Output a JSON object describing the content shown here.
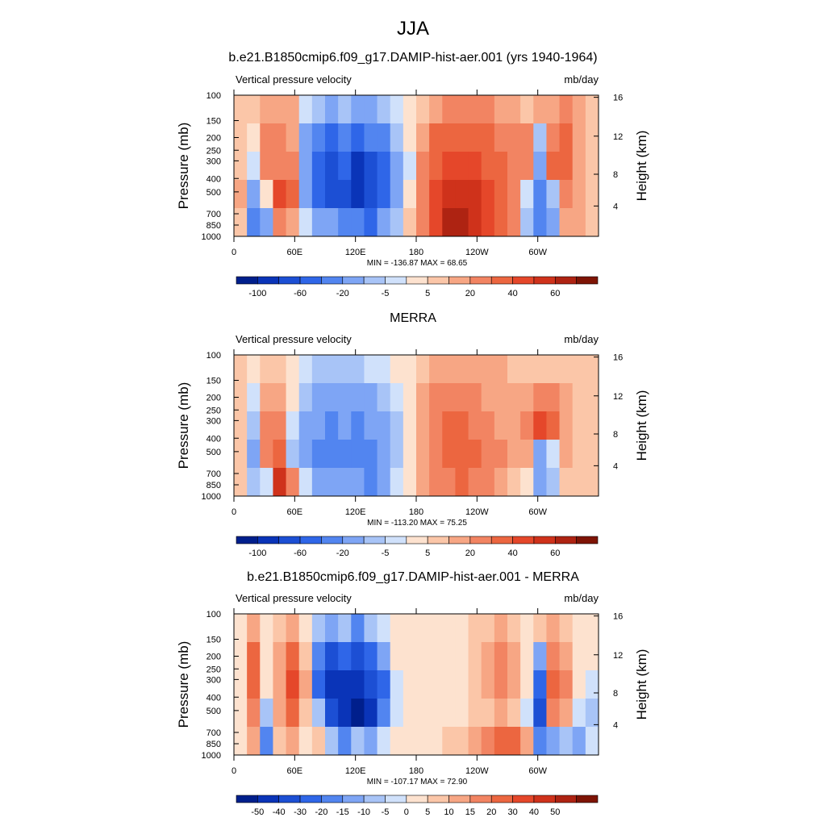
{
  "figure_title": "JJA",
  "chart_data": [
    {
      "type": "heatmap",
      "title": "b.e21.B1850cmip6.f09_g17.DAMIP-hist-aer.001 (yrs 1940-1964)",
      "left_label": "Vertical pressure velocity",
      "right_label": "mb/day",
      "xlabel": "",
      "ylabel": "Pressure (mb)",
      "y2label": "Height (km)",
      "x_ticks": [
        "0",
        "60E",
        "120E",
        "180",
        "120W",
        "60W"
      ],
      "y_ticks": [
        "100",
        "150",
        "200",
        "250",
        "300",
        "400",
        "500",
        "700",
        "850",
        "1000"
      ],
      "y2_ticks": [
        "16",
        "12",
        "8",
        "4"
      ],
      "stats": "MIN = -136.87  MAX =  68.65",
      "colorbar_labels": [
        "-100",
        "-60",
        "-20",
        "-5",
        "5",
        "20",
        "40",
        "60"
      ],
      "colorbar_colors": [
        "#001f8c",
        "#0a34b8",
        "#1c4fd4",
        "#2f66e8",
        "#5285f0",
        "#7ea5f5",
        "#a8c4f7",
        "#d0e1fb",
        "#fde2cf",
        "#fbc6a8",
        "#f7a684",
        "#f28462",
        "#ec6640",
        "#e5472a",
        "#cf321b",
        "#ae2312",
        "#7e1405"
      ],
      "sampled_values": [
        [
          2,
          2,
          5,
          5,
          5,
          -10,
          -20,
          -25,
          -20,
          -30,
          -25,
          -20,
          -10,
          -3,
          2,
          8,
          10,
          12,
          12,
          10,
          8,
          5,
          3,
          5,
          8,
          12,
          8,
          2
        ],
        [
          3,
          -5,
          10,
          12,
          8,
          -30,
          -60,
          -70,
          -55,
          -70,
          -60,
          -50,
          -20,
          -5,
          8,
          20,
          25,
          25,
          25,
          20,
          18,
          10,
          10,
          -20,
          15,
          20,
          5,
          3
        ],
        [
          3,
          -10,
          12,
          15,
          10,
          -40,
          -80,
          -100,
          -80,
          -110,
          -90,
          -70,
          -30,
          -8,
          10,
          25,
          35,
          35,
          30,
          25,
          20,
          12,
          15,
          -40,
          20,
          25,
          8,
          3
        ],
        [
          5,
          -30,
          -5,
          30,
          20,
          -30,
          -70,
          -90,
          -90,
          -120,
          -100,
          -70,
          -30,
          -5,
          15,
          30,
          45,
          45,
          40,
          30,
          20,
          10,
          -10,
          -60,
          -20,
          15,
          8,
          2
        ],
        [
          2,
          -50,
          -40,
          10,
          5,
          -10,
          -30,
          -40,
          -60,
          -60,
          -70,
          -40,
          -15,
          0,
          15,
          30,
          50,
          55,
          45,
          30,
          20,
          10,
          -20,
          -50,
          -30,
          5,
          5,
          2
        ]
      ]
    },
    {
      "type": "heatmap",
      "title": "MERRA",
      "left_label": "Vertical pressure velocity",
      "right_label": "mb/day",
      "xlabel": "",
      "ylabel": "Pressure (mb)",
      "y2label": "Height (km)",
      "x_ticks": [
        "0",
        "60E",
        "120E",
        "180",
        "120W",
        "60W"
      ],
      "y_ticks": [
        "100",
        "150",
        "200",
        "250",
        "300",
        "400",
        "500",
        "700",
        "850",
        "1000"
      ],
      "y2_ticks": [
        "16",
        "12",
        "8",
        "4"
      ],
      "stats": "MIN = -113.20  MAX =  75.25",
      "colorbar_labels": [
        "-100",
        "-60",
        "-20",
        "-5",
        "5",
        "20",
        "40",
        "60"
      ],
      "colorbar_colors": [
        "#001f8c",
        "#0a34b8",
        "#1c4fd4",
        "#2f66e8",
        "#5285f0",
        "#7ea5f5",
        "#a8c4f7",
        "#d0e1fb",
        "#fde2cf",
        "#fbc6a8",
        "#f7a684",
        "#f28462",
        "#ec6640",
        "#e5472a",
        "#cf321b",
        "#ae2312",
        "#7e1405"
      ],
      "sampled_values": [
        [
          2,
          -2,
          2,
          2,
          -3,
          -8,
          -12,
          -15,
          -15,
          -12,
          -10,
          -8,
          -5,
          -2,
          2,
          5,
          5,
          5,
          5,
          5,
          5,
          3,
          2,
          2,
          3,
          3,
          2,
          2
        ],
        [
          2,
          -8,
          5,
          5,
          -5,
          -20,
          -30,
          -35,
          -30,
          -30,
          -25,
          -20,
          -10,
          -3,
          5,
          10,
          12,
          12,
          10,
          8,
          5,
          5,
          5,
          15,
          10,
          5,
          3,
          2
        ],
        [
          3,
          -20,
          10,
          15,
          -10,
          -30,
          -40,
          -45,
          -40,
          -45,
          -40,
          -35,
          -15,
          -5,
          8,
          15,
          20,
          20,
          15,
          12,
          8,
          5,
          10,
          30,
          20,
          8,
          3,
          2
        ],
        [
          3,
          -30,
          15,
          25,
          -15,
          -30,
          -45,
          -50,
          -45,
          -55,
          -50,
          -40,
          -20,
          -5,
          8,
          18,
          22,
          25,
          22,
          15,
          10,
          5,
          5,
          -30,
          -10,
          5,
          3,
          2
        ],
        [
          2,
          -20,
          -10,
          40,
          10,
          -10,
          -30,
          -30,
          -35,
          -40,
          -45,
          -30,
          -10,
          -2,
          5,
          10,
          15,
          20,
          15,
          10,
          5,
          3,
          -5,
          -30,
          -20,
          2,
          2,
          2
        ]
      ]
    },
    {
      "type": "heatmap",
      "title": "b.e21.B1850cmip6.f09_g17.DAMIP-hist-aer.001 - MERRA",
      "left_label": "Vertical pressure velocity",
      "right_label": "mb/day",
      "xlabel": "",
      "ylabel": "Pressure (mb)",
      "y2label": "Height (km)",
      "x_ticks": [
        "0",
        "60E",
        "120E",
        "180",
        "120W",
        "60W"
      ],
      "y_ticks": [
        "100",
        "150",
        "200",
        "250",
        "300",
        "400",
        "500",
        "700",
        "850",
        "1000"
      ],
      "y2_ticks": [
        "16",
        "12",
        "8",
        "4"
      ],
      "stats": "MIN = -107.17  MAX =  72.90",
      "colorbar_labels": [
        "-50",
        "-40",
        "-30",
        "-20",
        "-15",
        "-10",
        "-5",
        "0",
        "5",
        "10",
        "15",
        "20",
        "30",
        "40",
        "50"
      ],
      "colorbar_colors": [
        "#001f8c",
        "#0a34b8",
        "#1c4fd4",
        "#2f66e8",
        "#5285f0",
        "#7ea5f5",
        "#a8c4f7",
        "#d0e1fb",
        "#fde2cf",
        "#fbc6a8",
        "#f7a684",
        "#f28462",
        "#ec6640",
        "#e5472a",
        "#cf321b",
        "#ae2312",
        "#7e1405"
      ],
      "sampled_values": [
        [
          2,
          10,
          2,
          5,
          10,
          3,
          -10,
          -15,
          -10,
          -20,
          -10,
          -5,
          2,
          2,
          2,
          2,
          2,
          2,
          5,
          8,
          10,
          8,
          2,
          5,
          10,
          8,
          2,
          2
        ],
        [
          3,
          20,
          3,
          10,
          20,
          5,
          -20,
          -35,
          -30,
          -35,
          -30,
          -15,
          0,
          2,
          2,
          2,
          2,
          2,
          5,
          10,
          15,
          12,
          2,
          -15,
          15,
          12,
          3,
          2
        ],
        [
          3,
          25,
          3,
          12,
          30,
          10,
          -25,
          -50,
          -45,
          -50,
          -40,
          -25,
          -2,
          2,
          2,
          2,
          2,
          2,
          5,
          10,
          15,
          12,
          3,
          -30,
          20,
          15,
          3,
          -2
        ],
        [
          2,
          15,
          -10,
          10,
          20,
          5,
          -10,
          -40,
          -45,
          -60,
          -50,
          -20,
          -2,
          2,
          2,
          2,
          3,
          3,
          5,
          8,
          10,
          8,
          -5,
          -35,
          15,
          10,
          -5,
          -10
        ],
        [
          2,
          10,
          -20,
          5,
          10,
          3,
          5,
          -10,
          -20,
          -10,
          -15,
          -5,
          0,
          2,
          3,
          3,
          5,
          8,
          10,
          15,
          20,
          25,
          10,
          -20,
          -15,
          -10,
          -15,
          -5
        ]
      ]
    }
  ]
}
